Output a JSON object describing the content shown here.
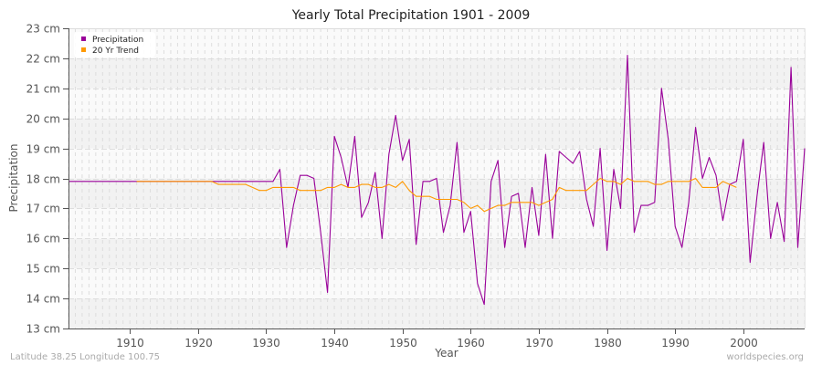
{
  "chart_data": {
    "type": "line",
    "title": "Yearly Total Precipitation 1901 - 2009",
    "xlabel": "Year",
    "ylabel": "Precipitation",
    "xlim": [
      1901,
      2009
    ],
    "ylim": [
      13,
      23
    ],
    "y_unit": "cm",
    "x_ticks": [
      1910,
      1920,
      1930,
      1940,
      1950,
      1960,
      1970,
      1980,
      1990,
      2000
    ],
    "y_ticks": [
      "13 cm",
      "14 cm",
      "15 cm",
      "16 cm",
      "17 cm",
      "18 cm",
      "19 cm",
      "20 cm",
      "21 cm",
      "22 cm",
      "23 cm"
    ],
    "grid": true,
    "legend_position": "top-left",
    "series": [
      {
        "name": "Precipitation",
        "color": "#990099",
        "start_year": 1901,
        "values": [
          17.9,
          17.9,
          17.9,
          17.9,
          17.9,
          17.9,
          17.9,
          17.9,
          17.9,
          17.9,
          17.9,
          17.9,
          17.9,
          17.9,
          17.9,
          17.9,
          17.9,
          17.9,
          17.9,
          17.9,
          17.9,
          17.9,
          17.9,
          17.9,
          17.9,
          17.9,
          17.9,
          17.9,
          17.9,
          17.9,
          17.9,
          18.3,
          15.7,
          17.1,
          18.1,
          18.1,
          18.0,
          16.2,
          14.2,
          19.4,
          18.7,
          17.7,
          19.4,
          16.7,
          17.2,
          18.2,
          16.0,
          18.8,
          20.1,
          18.6,
          19.3,
          15.8,
          17.9,
          17.9,
          18.0,
          16.2,
          17.1,
          19.2,
          16.2,
          16.9,
          14.5,
          13.8,
          17.9,
          18.6,
          15.7,
          17.4,
          17.5,
          15.7,
          17.7,
          16.1,
          18.8,
          16.0,
          18.9,
          18.7,
          18.5,
          18.9,
          17.3,
          16.4,
          19.0,
          15.6,
          18.3,
          17.0,
          22.1,
          16.2,
          17.1,
          17.1,
          17.2,
          21.0,
          19.3,
          16.4,
          15.7,
          17.2,
          19.7,
          18.0,
          18.7,
          18.1,
          16.6,
          17.8,
          17.9,
          19.3,
          15.2,
          17.4,
          19.2,
          16.0,
          17.2,
          15.9,
          21.7,
          15.7,
          19.0
        ]
      },
      {
        "name": "20 Yr Trend",
        "color": "#ff9900",
        "start_year": 1911,
        "values": [
          17.9,
          17.9,
          17.9,
          17.9,
          17.9,
          17.9,
          17.9,
          17.9,
          17.9,
          17.9,
          17.9,
          17.9,
          17.8,
          17.8,
          17.8,
          17.8,
          17.8,
          17.7,
          17.6,
          17.6,
          17.7,
          17.7,
          17.7,
          17.7,
          17.6,
          17.6,
          17.6,
          17.6,
          17.7,
          17.7,
          17.8,
          17.7,
          17.7,
          17.8,
          17.8,
          17.7,
          17.7,
          17.8,
          17.7,
          17.9,
          17.6,
          17.4,
          17.4,
          17.4,
          17.3,
          17.3,
          17.3,
          17.3,
          17.2,
          17.0,
          17.1,
          16.9,
          17.0,
          17.1,
          17.1,
          17.2,
          17.2,
          17.2,
          17.2,
          17.1,
          17.2,
          17.3,
          17.7,
          17.6,
          17.6,
          17.6,
          17.6,
          17.8,
          18.0,
          17.9,
          17.9,
          17.8,
          18.0,
          17.9,
          17.9,
          17.9,
          17.8,
          17.8,
          17.9,
          17.9,
          17.9,
          17.9,
          18.0,
          17.7,
          17.7,
          17.7,
          17.9,
          17.8,
          17.7
        ]
      }
    ]
  },
  "footer": {
    "location": "Latitude 38.25 Longitude 100.75",
    "source": "worldspecies.org"
  },
  "colors": {
    "band_light": "#fafafa",
    "band_dark": "#f2f2f2",
    "grid": "#dddddd",
    "axis": "#555555"
  }
}
